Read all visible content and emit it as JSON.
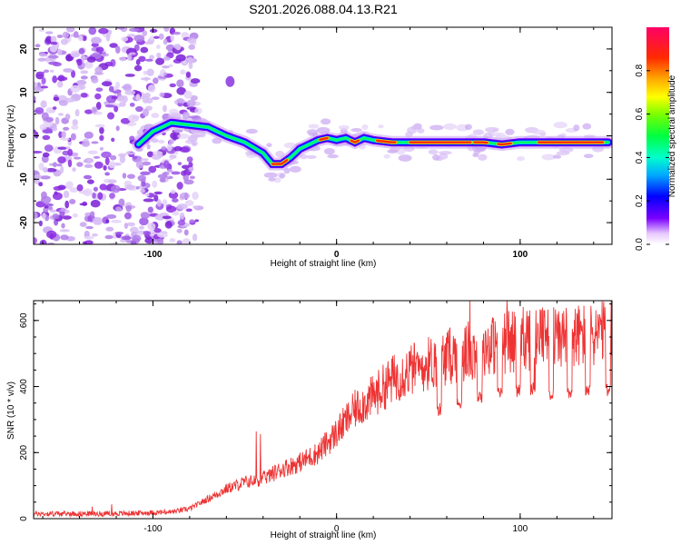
{
  "title": "S201.2026.088.04.13.R21",
  "chart_data": [
    {
      "type": "heatmap",
      "name": "spectrogram",
      "xlabel": "Height of straight line (km)",
      "ylabel": "Frequency (Hz)",
      "xlim": [
        -165,
        150
      ],
      "ylim": [
        -25,
        25
      ],
      "xticks": [
        -100,
        0,
        100
      ],
      "yticks": [
        -20,
        -10,
        0,
        10,
        20
      ],
      "colorbar": {
        "label": "Normalized spectral amplitude",
        "range": [
          0.0,
          1.0
        ],
        "ticks": [
          0.0,
          0.2,
          0.4,
          0.6,
          0.8
        ]
      },
      "ridge": {
        "x": [
          -108,
          -100,
          -90,
          -80,
          -70,
          -60,
          -50,
          -40,
          -35,
          -30,
          -25,
          -20,
          -15,
          -10,
          -5,
          0,
          5,
          10,
          15,
          20,
          30,
          40,
          50,
          60,
          70,
          80,
          90,
          100,
          110,
          120,
          130,
          140,
          148
        ],
        "y": [
          -2,
          1,
          3,
          2.5,
          2,
          0,
          -1.5,
          -4,
          -6.5,
          -6.5,
          -5,
          -3,
          -2,
          -1,
          -0.5,
          -1,
          -0.5,
          -1.5,
          -0.5,
          -1,
          -1.5,
          -1.5,
          -1.5,
          -1.5,
          -1.5,
          -1.5,
          -2,
          -1.5,
          -1.5,
          -1.5,
          -1.5,
          -1.5,
          -1.5
        ]
      }
    },
    {
      "type": "line",
      "name": "snr",
      "xlabel": "Height of straight line (km)",
      "ylabel": "SNR (10 * v/v)",
      "xlim": [
        -165,
        150
      ],
      "ylim": [
        0,
        660
      ],
      "xticks": [
        -100,
        0,
        100
      ],
      "yticks": [
        0,
        200,
        400,
        600
      ],
      "color": "#ee3333",
      "trend": {
        "x": [
          -165,
          -120,
          -90,
          -80,
          -70,
          -60,
          -50,
          -40,
          -30,
          -20,
          -10,
          0,
          10,
          20,
          30,
          40,
          60,
          80,
          100,
          120,
          150
        ],
        "y": [
          15,
          15,
          20,
          30,
          60,
          90,
          110,
          120,
          150,
          170,
          200,
          260,
          330,
          370,
          420,
          450,
          490,
          520,
          540,
          550,
          560
        ]
      }
    }
  ],
  "colors": {
    "line": "#ee3333",
    "cloud": "#8c2ce6",
    "cloud_light": "#d5b8f3"
  }
}
